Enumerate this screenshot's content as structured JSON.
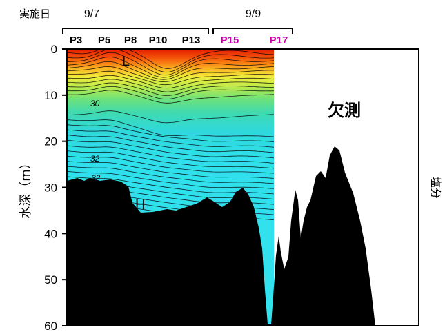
{
  "chart_data": {
    "type": "heatmap",
    "header_label": "実施日",
    "date_groups": [
      {
        "label": "9/7",
        "stations": [
          "P3",
          "P5",
          "P8",
          "P10",
          "P13"
        ],
        "color": "#000000"
      },
      {
        "label": "9/9",
        "stations": [
          "P15",
          "P17"
        ],
        "color": "#cc00aa"
      }
    ],
    "ylabel": "水深（m）",
    "ylim": [
      0,
      60
    ],
    "y_ticks": [
      0,
      10,
      20,
      30,
      40,
      50,
      60
    ],
    "colorbar_label": "塩分",
    "contour_labels": [
      "30",
      "32",
      "32"
    ],
    "annotations": [
      "L",
      "H"
    ],
    "missing_label": "欠測",
    "colors": {
      "seabed": "#000000",
      "low_salinity": "#e81c00",
      "high_salinity": "#2fe0ec",
      "contour": "#000000"
    }
  }
}
